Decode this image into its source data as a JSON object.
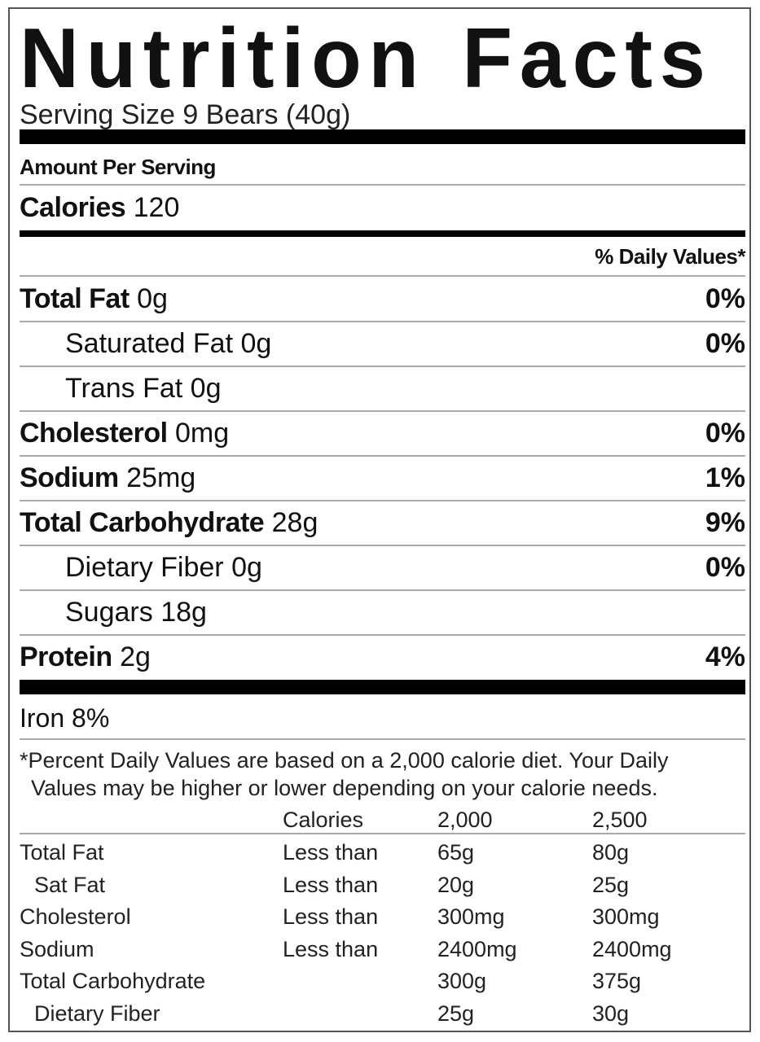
{
  "title_word1": "Nutrition",
  "title_word2": "Facts",
  "serving_size": "Serving Size 9 Bears (40g)",
  "amount_per_serving": "Amount Per Serving",
  "calories": {
    "label": "Calories",
    "value": "120"
  },
  "daily_values_header": "% Daily Values*",
  "nutrients": [
    {
      "name": "Total Fat",
      "amount": "0g",
      "dv": "0%"
    },
    {
      "name": "Saturated Fat",
      "amount": "0g",
      "dv": "0%"
    },
    {
      "name": "Trans Fat",
      "amount": "0g",
      "dv": ""
    },
    {
      "name": "Cholesterol",
      "amount": "0mg",
      "dv": "0%"
    },
    {
      "name": "Sodium",
      "amount": "25mg",
      "dv": "1%"
    },
    {
      "name": "Total Carbohydrate",
      "amount": "28g",
      "dv": "9%"
    },
    {
      "name": "Dietary Fiber",
      "amount": "0g",
      "dv": "0%"
    },
    {
      "name": "Sugars",
      "amount": "18g",
      "dv": ""
    },
    {
      "name": "Protein",
      "amount": "2g",
      "dv": "4%"
    }
  ],
  "vitamins": "Iron 8%",
  "footnote_line1": "*Percent Daily Values are based on a 2,000 calorie diet. Your Daily",
  "footnote_line2": "Values may be higher or lower depending on your calorie needs.",
  "reference_table": {
    "header": [
      "",
      "Calories",
      "2,000",
      "2,500"
    ],
    "rows": [
      [
        "Total Fat",
        "Less than",
        "65g",
        "80g"
      ],
      [
        "Sat Fat",
        "Less than",
        "20g",
        "25g"
      ],
      [
        "Cholesterol",
        "Less than",
        "300mg",
        "300mg"
      ],
      [
        "Sodium",
        "Less than",
        "2400mg",
        "2400mg"
      ],
      [
        "Total Carbohydrate",
        "",
        "300g",
        "375g"
      ],
      [
        "Dietary Fiber",
        "",
        "25g",
        "30g"
      ]
    ]
  }
}
